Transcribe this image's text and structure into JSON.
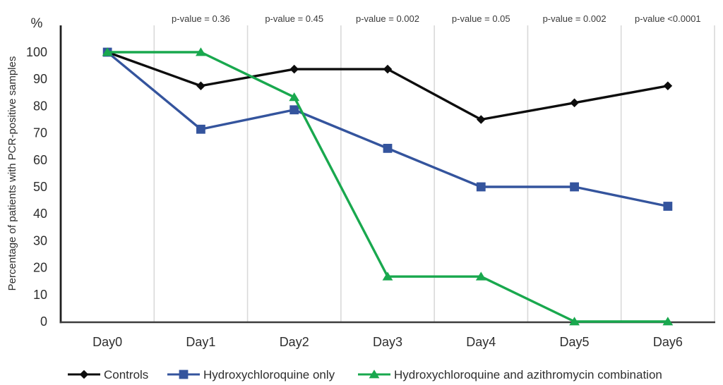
{
  "chart_data": {
    "type": "line",
    "title": "",
    "ylabel": "Percentage of patients with PCR-positive samples",
    "y_unit_label": "%",
    "xlabel": "",
    "categories": [
      "Day0",
      "Day1",
      "Day2",
      "Day3",
      "Day4",
      "Day5",
      "Day6"
    ],
    "y_ticks": [
      0,
      10,
      20,
      30,
      40,
      50,
      60,
      70,
      80,
      90,
      100
    ],
    "ylim": [
      0,
      100
    ],
    "grid": "vertical gridlines at category boundaries only",
    "legend_position": "bottom",
    "series": [
      {
        "name": "Controls",
        "marker": "diamond",
        "color": "#0d0d0d",
        "values": [
          100,
          87.5,
          93.7,
          93.7,
          75,
          81.2,
          87.5
        ]
      },
      {
        "name": "Hydroxychloroquine only",
        "marker": "square",
        "color": "#34549d",
        "values": [
          100,
          71.4,
          78.6,
          64.3,
          50,
          50,
          42.8
        ]
      },
      {
        "name": "Hydroxychloroquine and azithromycin combination",
        "marker": "triangle",
        "color": "#19a84e",
        "values": [
          100,
          100,
          83.3,
          16.7,
          16.7,
          0,
          0
        ]
      }
    ],
    "annotations": [
      {
        "category": "Day1",
        "text": "p-value = 0.36"
      },
      {
        "category": "Day2",
        "text": "p-value = 0.45"
      },
      {
        "category": "Day3",
        "text": "p-value = 0.002"
      },
      {
        "category": "Day4",
        "text": "p-value = 0.05"
      },
      {
        "category": "Day5",
        "text": "p-value = 0.002"
      },
      {
        "category": "Day6",
        "text": "p-value <0.0001"
      }
    ],
    "colors": {
      "background": "#ffffff",
      "gridline": "#d9d9d9",
      "y_axis_line": "#1f1f1f",
      "x_axis_line": "#3d3d3d",
      "tick_text": "#2e2e2e",
      "annotation_text": "#3a3a3a",
      "legend_text": "#2e2e2e"
    }
  }
}
